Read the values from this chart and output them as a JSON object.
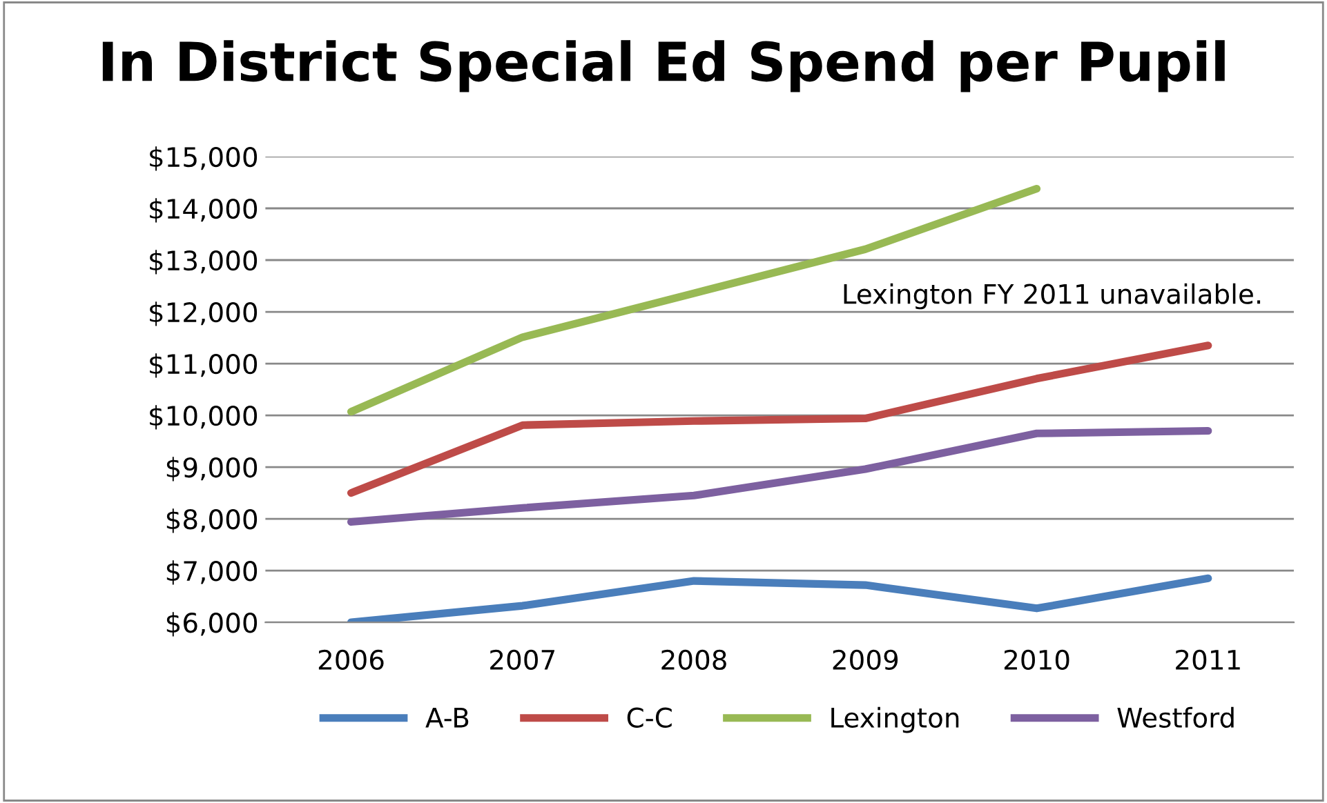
{
  "chart_data": {
    "type": "line",
    "title": "In District Special Ed Spend per Pupil",
    "categories": [
      "2006",
      "2007",
      "2008",
      "2009",
      "2010",
      "2011"
    ],
    "series": [
      {
        "name": "A-B",
        "color": "#4a7ebb",
        "values": [
          6000,
          6320,
          6800,
          6720,
          6270,
          6850
        ]
      },
      {
        "name": "C-C",
        "color": "#be4b48",
        "values": [
          8500,
          9810,
          9890,
          9940,
          10710,
          11350
        ]
      },
      {
        "name": "Lexington",
        "color": "#98b954",
        "values": [
          10070,
          11510,
          12360,
          13210,
          14380,
          null
        ]
      },
      {
        "name": "Westford",
        "color": "#7d60a0",
        "values": [
          7940,
          8210,
          8450,
          8960,
          9650,
          9700
        ]
      }
    ],
    "ylim": [
      6000,
      15000
    ],
    "yticks": [
      {
        "value": 6000,
        "label": "$6,000"
      },
      {
        "value": 7000,
        "label": "$7,000"
      },
      {
        "value": 8000,
        "label": "$8,000"
      },
      {
        "value": 9000,
        "label": "$9,000"
      },
      {
        "value": 10000,
        "label": "$10,000"
      },
      {
        "value": 11000,
        "label": "$11,000"
      },
      {
        "value": 12000,
        "label": "$12,000"
      },
      {
        "value": 13000,
        "label": "$13,000"
      },
      {
        "value": 14000,
        "label": "$14,000"
      },
      {
        "value": 15000,
        "label": "$15,000"
      }
    ],
    "grid": "y",
    "legend": "bottom",
    "marker": "none",
    "line_style": "solid",
    "annotations": [
      "Lexington FY 2011 unavailable."
    ]
  }
}
